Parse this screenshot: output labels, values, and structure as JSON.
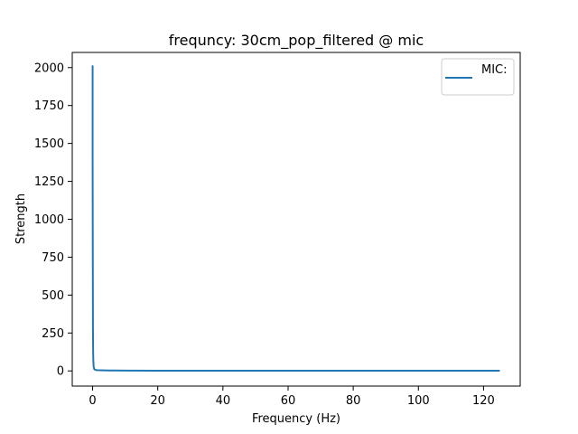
{
  "chart_data": {
    "type": "line",
    "title": "frequncy: 30cm_pop_filtered @ mic",
    "xlabel": "Frequency (Hz)",
    "ylabel": "Strength",
    "xlim": [
      -6.25,
      131.25
    ],
    "ylim": [
      -100,
      2100
    ],
    "xticks": [
      0,
      20,
      40,
      60,
      80,
      100,
      120
    ],
    "yticks": [
      0,
      250,
      500,
      750,
      1000,
      1250,
      1500,
      1750,
      2000
    ],
    "grid": false,
    "legend_position": "top-right",
    "series": [
      {
        "name": "MIC:",
        "color": "#1f77b4",
        "x": [
          0,
          0.0,
          0.0,
          0.05,
          0.1,
          0.15,
          0.2,
          0.3,
          0.5,
          1,
          2,
          5,
          10,
          20,
          40,
          60,
          80,
          100,
          120,
          125
        ],
        "y": [
          1390,
          2010,
          1400,
          800,
          300,
          150,
          80,
          30,
          12,
          6,
          4,
          3,
          2,
          1.5,
          1,
          1,
          1,
          1,
          1,
          1
        ]
      }
    ]
  },
  "colors": {
    "axes": "#000000",
    "series": "#1f77b4",
    "legend_border": "#cccccc"
  }
}
